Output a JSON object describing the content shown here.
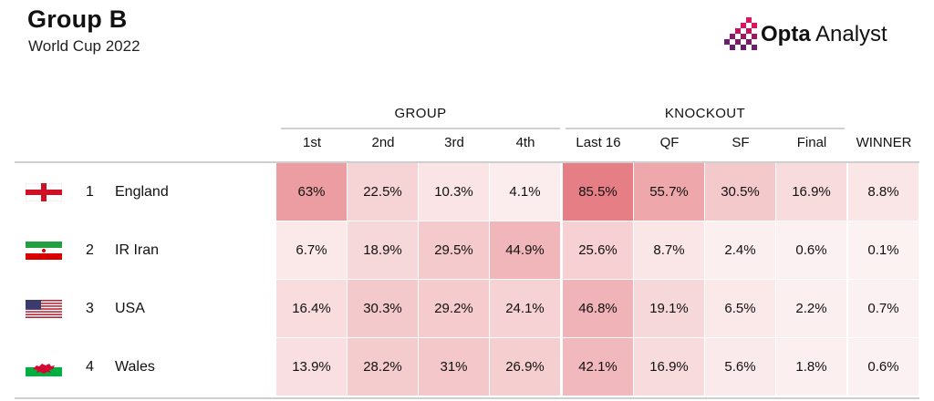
{
  "header": {
    "title": "Group B",
    "subtitle": "World Cup 2022",
    "brand_bold": "Opta",
    "brand_light": " Analyst"
  },
  "groups": [
    {
      "label": "GROUP"
    },
    {
      "label": "KNOCKOUT"
    }
  ],
  "columns": [
    "1st",
    "2nd",
    "3rd",
    "4th",
    "Last 16",
    "QF",
    "SF",
    "Final",
    "WINNER"
  ],
  "flags": [
    "england-flag-icon",
    "iran-flag-icon",
    "usa-flag-icon",
    "wales-flag-icon"
  ],
  "colors": {
    "heat_max": "#e26c73",
    "brand_accent": "#e0115f",
    "brand_purple": "#6b1e6e"
  },
  "chart_data": {
    "type": "table",
    "title": "Group B",
    "subtitle": "World Cup 2022",
    "columns": [
      "1st",
      "2nd",
      "3rd",
      "4th",
      "Last 16",
      "QF",
      "SF",
      "Final",
      "WINNER"
    ],
    "column_groups": [
      {
        "label": "GROUP",
        "columns": [
          "1st",
          "2nd",
          "3rd",
          "4th"
        ]
      },
      {
        "label": "KNOCKOUT",
        "columns": [
          "Last 16",
          "QF",
          "SF",
          "Final"
        ]
      }
    ],
    "rows": [
      {
        "rank": "1",
        "team": "England",
        "labels": [
          "63%",
          "22.5%",
          "10.3%",
          "4.1%",
          "85.5%",
          "55.7%",
          "30.5%",
          "16.9%",
          "8.8%"
        ],
        "values": [
          63,
          22.5,
          10.3,
          4.1,
          85.5,
          55.7,
          30.5,
          16.9,
          8.8
        ]
      },
      {
        "rank": "2",
        "team": "IR Iran",
        "labels": [
          "6.7%",
          "18.9%",
          "29.5%",
          "44.9%",
          "25.6%",
          "8.7%",
          "2.4%",
          "0.6%",
          "0.1%"
        ],
        "values": [
          6.7,
          18.9,
          29.5,
          44.9,
          25.6,
          8.7,
          2.4,
          0.6,
          0.1
        ]
      },
      {
        "rank": "3",
        "team": "USA",
        "labels": [
          "16.4%",
          "30.3%",
          "29.2%",
          "24.1%",
          "46.8%",
          "19.1%",
          "6.5%",
          "2.2%",
          "0.7%"
        ],
        "values": [
          16.4,
          30.3,
          29.2,
          24.1,
          46.8,
          19.1,
          6.5,
          2.2,
          0.7
        ]
      },
      {
        "rank": "4",
        "team": "Wales",
        "labels": [
          "13.9%",
          "28.2%",
          "31%",
          "26.9%",
          "42.1%",
          "16.9%",
          "5.6%",
          "1.8%",
          "0.6%"
        ],
        "values": [
          13.9,
          28.2,
          31,
          26.9,
          42.1,
          16.9,
          5.6,
          1.8,
          0.6
        ]
      }
    ],
    "value_range": [
      0,
      100
    ]
  }
}
